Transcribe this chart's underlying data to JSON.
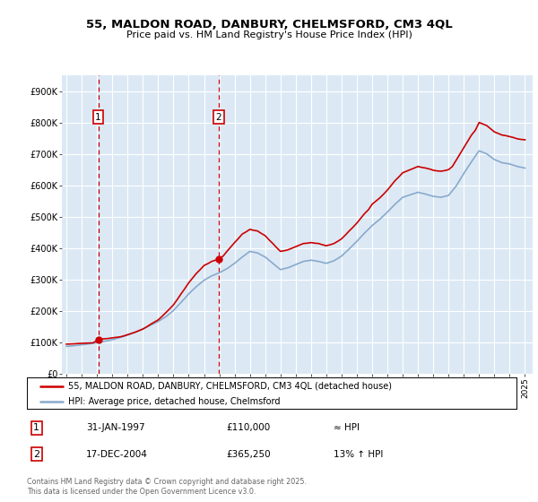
{
  "title": "55, MALDON ROAD, DANBURY, CHELMSFORD, CM3 4QL",
  "subtitle": "Price paid vs. HM Land Registry's House Price Index (HPI)",
  "xlim": [
    1994.7,
    2025.5
  ],
  "ylim": [
    0,
    950000
  ],
  "yticks": [
    0,
    100000,
    200000,
    300000,
    400000,
    500000,
    600000,
    700000,
    800000,
    900000
  ],
  "ytick_labels": [
    "£0",
    "£100K",
    "£200K",
    "£300K",
    "£400K",
    "£500K",
    "£600K",
    "£700K",
    "£800K",
    "£900K"
  ],
  "xticks": [
    1995,
    1996,
    1997,
    1998,
    1999,
    2000,
    2001,
    2002,
    2003,
    2004,
    2005,
    2006,
    2007,
    2008,
    2009,
    2010,
    2011,
    2012,
    2013,
    2014,
    2015,
    2016,
    2017,
    2018,
    2019,
    2020,
    2021,
    2022,
    2023,
    2024,
    2025
  ],
  "background_color": "#dce9f5",
  "grid_color": "#ffffff",
  "fig_bg_color": "#ffffff",
  "price_line_color": "#cc0000",
  "hpi_line_color": "#88aacc",
  "sale1_x": 1997.08,
  "sale1_y": 110000,
  "sale1_label": "1",
  "sale1_date": "31-JAN-1997",
  "sale1_price": "£110,000",
  "sale1_hpi": "≈ HPI",
  "sale2_x": 2004.96,
  "sale2_y": 365250,
  "sale2_label": "2",
  "sale2_date": "17-DEC-2004",
  "sale2_price": "£365,250",
  "sale2_hpi": "13% ↑ HPI",
  "legend_line1": "55, MALDON ROAD, DANBURY, CHELMSFORD, CM3 4QL (detached house)",
  "legend_line2": "HPI: Average price, detached house, Chelmsford",
  "footer": "Contains HM Land Registry data © Crown copyright and database right 2025.\nThis data is licensed under the Open Government Licence v3.0.",
  "price_data_x": [
    1995.0,
    1995.25,
    1995.5,
    1995.75,
    1996.0,
    1996.25,
    1996.5,
    1996.75,
    1997.08,
    1997.25,
    1997.5,
    1997.75,
    1998.0,
    1998.25,
    1998.5,
    1998.75,
    1999.0,
    1999.25,
    1999.5,
    1999.75,
    2000.0,
    2000.25,
    2000.5,
    2000.75,
    2001.0,
    2001.25,
    2001.5,
    2001.75,
    2002.0,
    2002.25,
    2002.5,
    2002.75,
    2003.0,
    2003.25,
    2003.5,
    2003.75,
    2004.0,
    2004.25,
    2004.5,
    2004.75,
    2004.96,
    2005.25,
    2005.5,
    2005.75,
    2006.0,
    2006.25,
    2006.5,
    2006.75,
    2007.0,
    2007.25,
    2007.5,
    2007.75,
    2008.0,
    2008.25,
    2008.5,
    2008.75,
    2009.0,
    2009.25,
    2009.5,
    2009.75,
    2010.0,
    2010.25,
    2010.5,
    2010.75,
    2011.0,
    2011.25,
    2011.5,
    2011.75,
    2012.0,
    2012.25,
    2012.5,
    2012.75,
    2013.0,
    2013.25,
    2013.5,
    2013.75,
    2014.0,
    2014.25,
    2014.5,
    2014.75,
    2015.0,
    2015.25,
    2015.5,
    2015.75,
    2016.0,
    2016.25,
    2016.5,
    2016.75,
    2017.0,
    2017.25,
    2017.5,
    2017.75,
    2018.0,
    2018.25,
    2018.5,
    2018.75,
    2019.0,
    2019.25,
    2019.5,
    2019.75,
    2020.0,
    2020.25,
    2020.5,
    2020.75,
    2021.0,
    2021.25,
    2021.5,
    2021.75,
    2022.0,
    2022.25,
    2022.5,
    2022.75,
    2023.0,
    2023.25,
    2023.5,
    2023.75,
    2024.0,
    2024.25,
    2024.5,
    2024.75,
    2025.0
  ],
  "price_data_y": [
    95000,
    95500,
    96000,
    97000,
    97500,
    98000,
    98500,
    99000,
    110000,
    111000,
    112000,
    113000,
    115000,
    116500,
    118000,
    121000,
    125000,
    129000,
    133000,
    138000,
    143000,
    150000,
    158000,
    165000,
    172000,
    183000,
    195000,
    207000,
    220000,
    237000,
    255000,
    272000,
    290000,
    305000,
    320000,
    332000,
    345000,
    351000,
    358000,
    362000,
    365250,
    375000,
    390000,
    404000,
    418000,
    431000,
    445000,
    452000,
    460000,
    457000,
    455000,
    447000,
    440000,
    427000,
    415000,
    402000,
    390000,
    392000,
    395000,
    400000,
    405000,
    410000,
    415000,
    416000,
    418000,
    416000,
    415000,
    411000,
    408000,
    411000,
    415000,
    422000,
    430000,
    442000,
    455000,
    467000,
    480000,
    495000,
    510000,
    522000,
    540000,
    550000,
    560000,
    572000,
    585000,
    600000,
    615000,
    627000,
    640000,
    645000,
    650000,
    655000,
    660000,
    657000,
    655000,
    652000,
    648000,
    646000,
    645000,
    647000,
    650000,
    660000,
    680000,
    700000,
    720000,
    740000,
    760000,
    775000,
    800000,
    795000,
    790000,
    780000,
    770000,
    765000,
    760000,
    758000,
    755000,
    752000,
    748000,
    746000,
    745000
  ],
  "hpi_data_x": [
    1995.0,
    1995.25,
    1995.5,
    1995.75,
    1996.0,
    1996.25,
    1996.5,
    1996.75,
    1997.0,
    1997.25,
    1997.5,
    1997.75,
    1998.0,
    1998.25,
    1998.5,
    1998.75,
    1999.0,
    1999.25,
    1999.5,
    1999.75,
    2000.0,
    2000.25,
    2000.5,
    2000.75,
    2001.0,
    2001.25,
    2001.5,
    2001.75,
    2002.0,
    2002.25,
    2002.5,
    2002.75,
    2003.0,
    2003.25,
    2003.5,
    2003.75,
    2004.0,
    2004.25,
    2004.5,
    2004.75,
    2005.0,
    2005.25,
    2005.5,
    2005.75,
    2006.0,
    2006.25,
    2006.5,
    2006.75,
    2007.0,
    2007.25,
    2007.5,
    2007.75,
    2008.0,
    2008.25,
    2008.5,
    2008.75,
    2009.0,
    2009.25,
    2009.5,
    2009.75,
    2010.0,
    2010.25,
    2010.5,
    2010.75,
    2011.0,
    2011.25,
    2011.5,
    2011.75,
    2012.0,
    2012.25,
    2012.5,
    2012.75,
    2013.0,
    2013.25,
    2013.5,
    2013.75,
    2014.0,
    2014.25,
    2014.5,
    2014.75,
    2015.0,
    2015.25,
    2015.5,
    2015.75,
    2016.0,
    2016.25,
    2016.5,
    2016.75,
    2017.0,
    2017.25,
    2017.5,
    2017.75,
    2018.0,
    2018.25,
    2018.5,
    2018.75,
    2019.0,
    2019.25,
    2019.5,
    2019.75,
    2020.0,
    2020.25,
    2020.5,
    2020.75,
    2021.0,
    2021.25,
    2021.5,
    2021.75,
    2022.0,
    2022.25,
    2022.5,
    2022.75,
    2023.0,
    2023.25,
    2023.5,
    2023.75,
    2024.0,
    2024.25,
    2024.5,
    2024.75,
    2025.0
  ],
  "hpi_data_y": [
    88000,
    89000,
    90000,
    91500,
    93000,
    94500,
    96000,
    98000,
    100000,
    102000,
    104000,
    106500,
    109000,
    112500,
    116000,
    120000,
    124000,
    128500,
    133000,
    138000,
    143000,
    149000,
    155000,
    161000,
    167000,
    174500,
    182000,
    192000,
    202000,
    215000,
    228000,
    241000,
    255000,
    266500,
    278000,
    288000,
    298000,
    305000,
    312000,
    317000,
    322000,
    328500,
    335000,
    343500,
    352000,
    362000,
    372000,
    381000,
    390000,
    387500,
    385000,
    378500,
    372000,
    362000,
    352000,
    342000,
    332000,
    335000,
    338000,
    343000,
    348000,
    353000,
    358000,
    360000,
    362000,
    360000,
    358000,
    355000,
    352000,
    356000,
    360000,
    367500,
    375000,
    386500,
    398000,
    410000,
    422000,
    435000,
    448000,
    460000,
    472000,
    482000,
    492000,
    503500,
    515000,
    527500,
    540000,
    551000,
    562000,
    566000,
    570000,
    574000,
    578000,
    575000,
    572000,
    568500,
    565000,
    563500,
    562000,
    565000,
    568000,
    583000,
    598000,
    618000,
    638000,
    656500,
    675000,
    693000,
    710000,
    705000,
    700000,
    691000,
    682000,
    677000,
    672000,
    670000,
    668000,
    664000,
    660000,
    657500,
    655000
  ]
}
